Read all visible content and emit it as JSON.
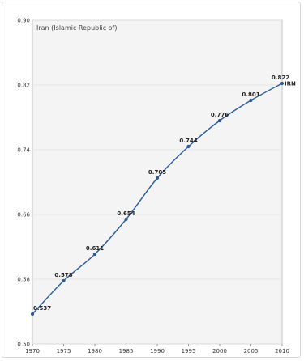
{
  "chart_data": {
    "type": "line",
    "title": "Iran (Islamic Republic of)",
    "x": [
      1970,
      1975,
      1980,
      1985,
      1990,
      1995,
      2000,
      2005,
      2010
    ],
    "series": [
      {
        "values": [
          0.537,
          0.578,
          0.611,
          0.654,
          0.705,
          0.744,
          0.776,
          0.801,
          0.822
        ],
        "data_labels": [
          "0.537",
          "0.578",
          "0.611",
          "0.654",
          "0.705",
          "0.744",
          "0.776",
          "0.801",
          "0.822"
        ],
        "end_label": "IRN",
        "color": "#2a5b9a"
      }
    ],
    "xlim": [
      1970,
      2010
    ],
    "ylim": [
      0.5,
      0.9
    ],
    "x_ticks": [
      1970,
      1975,
      1980,
      1985,
      1990,
      1995,
      2000,
      2005,
      2010
    ],
    "x_tick_labels": [
      "1970",
      "1975",
      "1980",
      "1985",
      "1990",
      "1995",
      "2000",
      "2005",
      "2010"
    ],
    "y_ticks": [
      0.5,
      0.58,
      0.66,
      0.74,
      0.82,
      0.9
    ],
    "y_tick_labels": [
      "0.50",
      "0.58",
      "0.66",
      "0.74",
      "0.82",
      "0.90"
    ],
    "grid": "horizontal",
    "plot_background": "#f4f4f4",
    "line_color": "#2a5b9a"
  }
}
